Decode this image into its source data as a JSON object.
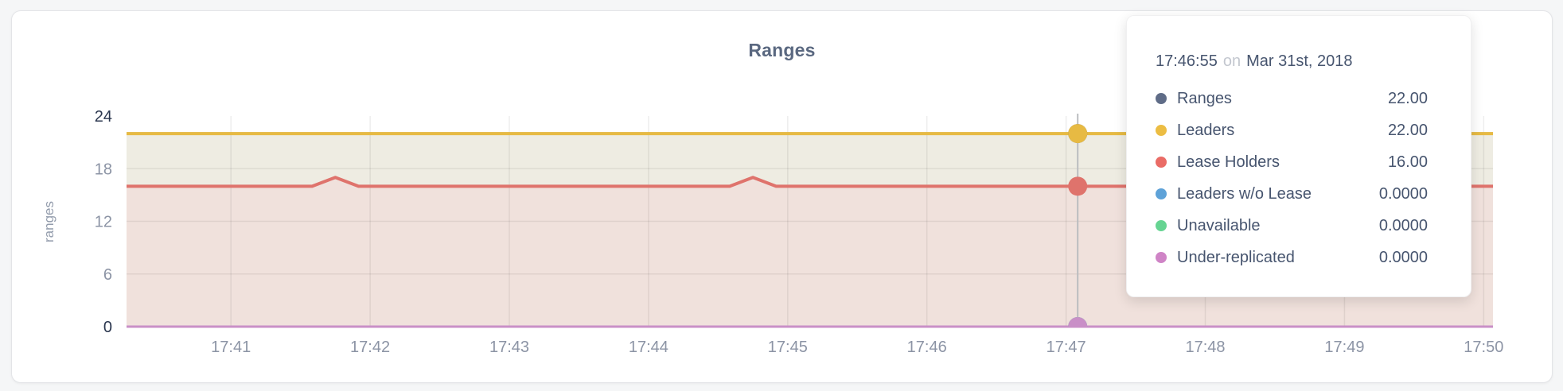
{
  "chart_data": {
    "type": "line",
    "title": "Ranges",
    "ylabel": "ranges",
    "ylim": [
      0,
      24
    ],
    "y_ticks": [
      0,
      6,
      12,
      18,
      24
    ],
    "y_grid_ticks": [
      6,
      12,
      18
    ],
    "x_ticks": [
      "17:41",
      "17:42",
      "17:43",
      "17:44",
      "17:45",
      "17:46",
      "17:47",
      "17:48",
      "17:49",
      "17:50"
    ],
    "x_domain": [
      "17:40:15",
      "17:50:04"
    ],
    "grid": true,
    "legend_position": "tooltip",
    "series": [
      {
        "name": "Ranges",
        "color": "#5f6c87",
        "width": 3.5,
        "fill": null,
        "points": [
          [
            "17:40:15",
            22
          ],
          [
            "17:50:04",
            22
          ]
        ]
      },
      {
        "name": "Leaders",
        "color": "#e7ba43",
        "width": 4,
        "fill": "#eeece2",
        "points": [
          [
            "17:40:15",
            22
          ],
          [
            "17:50:04",
            22
          ]
        ]
      },
      {
        "name": "Lease Holders",
        "color": "#df736c",
        "width": 4,
        "fill": "#f0e1dc",
        "points": [
          [
            "17:40:15",
            16
          ],
          [
            "17:41:35",
            16
          ],
          [
            "17:41:45",
            17
          ],
          [
            "17:41:55",
            16
          ],
          [
            "17:44:35",
            16
          ],
          [
            "17:44:45",
            17
          ],
          [
            "17:44:55",
            16
          ],
          [
            "17:50:04",
            16
          ]
        ]
      },
      {
        "name": "Leaders w/o Lease",
        "color": "#5ea2d8",
        "width": 2.5,
        "fill": null,
        "points": [
          [
            "17:40:15",
            0
          ],
          [
            "17:50:04",
            0
          ]
        ]
      },
      {
        "name": "Unavailable",
        "color": "#66d492",
        "width": 2.5,
        "fill": null,
        "points": [
          [
            "17:40:15",
            0
          ],
          [
            "17:50:04",
            0
          ]
        ]
      },
      {
        "name": "Under-replicated",
        "color": "#c98fc7",
        "width": 3,
        "fill": null,
        "points": [
          [
            "17:40:15",
            0
          ],
          [
            "17:50:04",
            0
          ]
        ]
      }
    ],
    "hover": {
      "line_time": "17:47:05",
      "dot_radius": 12
    }
  },
  "tooltip": {
    "time": "17:46:55",
    "on_word": "on",
    "date": "Mar 31st, 2018",
    "rows": [
      {
        "label": "Ranges",
        "value": "22.00",
        "color": "#5f6c87"
      },
      {
        "label": "Leaders",
        "value": "22.00",
        "color": "#ecbd43"
      },
      {
        "label": "Lease Holders",
        "value": "16.00",
        "color": "#ea6c66"
      },
      {
        "label": "Leaders w/o Lease",
        "value": "0.0000",
        "color": "#5ea2d8"
      },
      {
        "label": "Unavailable",
        "value": "0.0000",
        "color": "#66d492"
      },
      {
        "label": "Under-replicated",
        "value": "0.0000",
        "color": "#cf84c6"
      }
    ]
  },
  "colors": {
    "page_background": "#f5f6f7",
    "panel_background": "#ffffff",
    "panel_border": "#e3e4e7",
    "grid_line": "rgba(0,0,0,0.07)",
    "hover_line": "#bbbdc0",
    "axis_text": "#8c94a5",
    "axis_text_dark": "#2b374f",
    "title_text": "#5a6880"
  }
}
